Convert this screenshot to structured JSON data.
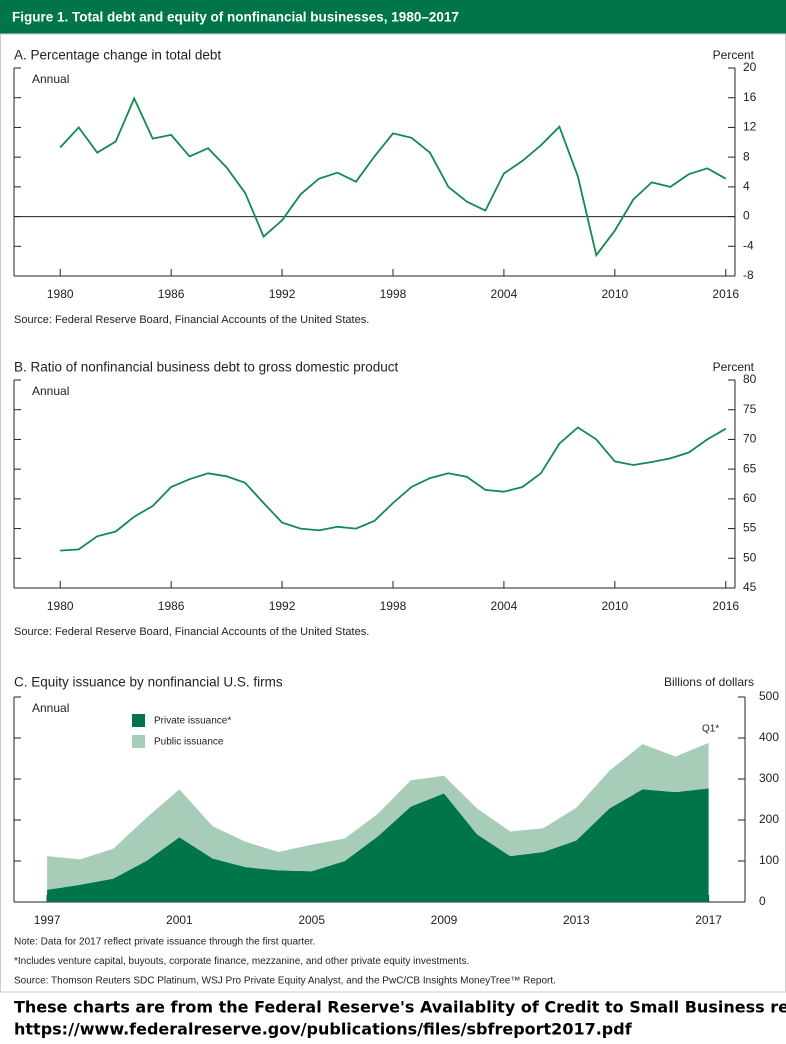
{
  "header": {
    "title": "Figure 1. Total debt and equity of nonfinancial businesses, 1980–2017"
  },
  "chart_data": [
    {
      "type": "line",
      "title": "A. Percentage change in total debt",
      "subtitle": "Annual",
      "y_label": "Percent",
      "x": [
        1980,
        1981,
        1982,
        1983,
        1984,
        1985,
        1986,
        1987,
        1988,
        1989,
        1990,
        1991,
        1992,
        1993,
        1994,
        1995,
        1996,
        1997,
        1998,
        1999,
        2000,
        2001,
        2002,
        2003,
        2004,
        2005,
        2006,
        2007,
        2008,
        2009,
        2010,
        2011,
        2012,
        2013,
        2014,
        2015,
        2016
      ],
      "values": [
        9.3,
        12.0,
        8.6,
        10.1,
        15.9,
        10.5,
        11.0,
        8.1,
        9.2,
        6.6,
        3.2,
        -2.7,
        -0.5,
        3.0,
        5.1,
        5.9,
        4.7,
        8.1,
        11.2,
        10.6,
        8.6,
        4.0,
        2.0,
        0.8,
        5.8,
        7.5,
        9.6,
        12.1,
        5.4,
        -5.2,
        -1.9,
        2.3,
        4.6,
        4.0,
        5.7,
        6.5,
        5.1
      ],
      "color": "#138a4f",
      "xlim": [
        1977.5,
        2016.5
      ],
      "xticks": [
        1980,
        1986,
        1992,
        1998,
        2004,
        2010,
        2016
      ],
      "ylim": [
        -8,
        20
      ],
      "yticks": [
        -8,
        -4,
        0,
        4,
        8,
        12,
        16,
        20
      ],
      "zero_line": true,
      "source": "Source: Federal Reserve Board, Financial Accounts of the United States."
    },
    {
      "type": "line",
      "title": "B. Ratio of nonfinancial business debt to gross domestic product",
      "subtitle": "Annual",
      "y_label": "Percent",
      "x": [
        1980,
        1981,
        1982,
        1983,
        1984,
        1985,
        1986,
        1987,
        1988,
        1989,
        1990,
        1991,
        1992,
        1993,
        1994,
        1995,
        1996,
        1997,
        1998,
        1999,
        2000,
        2001,
        2002,
        2003,
        2004,
        2005,
        2006,
        2007,
        2008,
        2009,
        2010,
        2011,
        2012,
        2013,
        2014,
        2015,
        2016
      ],
      "values": [
        51.3,
        51.5,
        53.7,
        54.5,
        57,
        58.8,
        62,
        63.3,
        64.3,
        63.8,
        62.7,
        59.3,
        56,
        55,
        54.7,
        55.3,
        55,
        56.3,
        59.3,
        62,
        63.5,
        64.3,
        63.7,
        61.5,
        61.2,
        62,
        64.3,
        69.3,
        72,
        70,
        66.3,
        65.7,
        66.2,
        66.8,
        67.8,
        70,
        71.8
      ],
      "color": "#138a4f",
      "xlim": [
        1977.5,
        2016.5
      ],
      "xticks": [
        1980,
        1986,
        1992,
        1998,
        2004,
        2010,
        2016
      ],
      "ylim": [
        45,
        80
      ],
      "yticks": [
        45,
        50,
        55,
        60,
        65,
        70,
        75,
        80
      ],
      "source": "Source: Federal Reserve Board, Financial Accounts of the United States."
    },
    {
      "type": "area",
      "title": "C. Equity issuance by nonfinancial U.S. firms",
      "subtitle": "Annual",
      "y_label": "Billions of dollars",
      "x": [
        1997,
        1998,
        1999,
        2000,
        2001,
        2002,
        2003,
        2004,
        2005,
        2006,
        2007,
        2008,
        2009,
        2010,
        2011,
        2012,
        2013,
        2014,
        2015,
        2016,
        2017
      ],
      "series": [
        {
          "name": "Private issuance*",
          "color": "#00754a",
          "values": [
            30,
            42,
            57,
            100,
            158,
            106,
            85,
            77,
            75,
            100,
            160,
            233,
            265,
            165,
            112,
            122,
            150,
            228,
            275,
            268,
            277
          ]
        },
        {
          "name": "Public issuance",
          "color": "#a7cdb8",
          "values": [
            82,
            62,
            73,
            105,
            117,
            79,
            62,
            45,
            65,
            55,
            55,
            64,
            43,
            63,
            60,
            58,
            80,
            92,
            110,
            87,
            111
          ]
        }
      ],
      "stacked": true,
      "annotation": "Q1*",
      "xlim": [
        1996,
        2018.1
      ],
      "xticks": [
        1997,
        2001,
        2005,
        2009,
        2013,
        2017
      ],
      "ylim": [
        0,
        500
      ],
      "yticks": [
        0,
        100,
        200,
        300,
        400,
        500
      ],
      "notes": [
        "Note: Data for 2017 reflect private issuance through the first quarter.",
        "*Includes venture capital, buyouts, corporate finance, mezzanine, and other private equity investments.",
        "Source: Thomson Reuters SDC Platinum, WSJ Pro Private Equity Analyst, and the PwC/CB Insights MoneyTree™ Report."
      ]
    }
  ],
  "caption": [
    "These charts are from the Federal Reserve's Availablity of Credit to Small Business report,",
    "https://www.federalreserve.gov/publications/files/sbfreport2017.pdf"
  ]
}
